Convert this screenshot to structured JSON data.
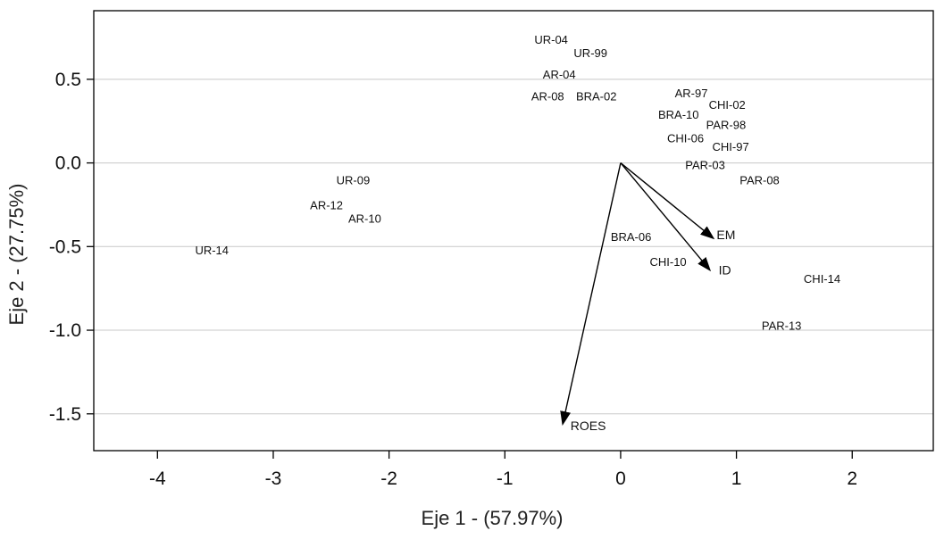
{
  "chart_data": {
    "type": "scatter",
    "title": "",
    "xlabel": "Eje 1 - (57.97%)",
    "ylabel": "Eje 2 - (27.75%)",
    "xlim": [
      -4.55,
      2.7
    ],
    "ylim": [
      -1.72,
      0.91
    ],
    "xticks": [
      -4,
      -3,
      -2,
      -1,
      0,
      1,
      2
    ],
    "xtick_labels": [
      "-4",
      "-3",
      "-2",
      "-1",
      "0",
      "1",
      "2"
    ],
    "yticks": [
      0.5,
      0.0,
      -0.5,
      -1.0,
      -1.5
    ],
    "ytick_labels": [
      "0.5",
      "0.0",
      "-0.5",
      "-1.0",
      "-1.5"
    ],
    "grid": "horizontal",
    "points": [
      {
        "label": "UR-04",
        "x": -0.6,
        "y": 0.74
      },
      {
        "label": "UR-99",
        "x": -0.26,
        "y": 0.66
      },
      {
        "label": "AR-04",
        "x": -0.53,
        "y": 0.53
      },
      {
        "label": "AR-08",
        "x": -0.63,
        "y": 0.4
      },
      {
        "label": "BRA-02",
        "x": -0.21,
        "y": 0.4
      },
      {
        "label": "AR-97",
        "x": 0.61,
        "y": 0.42
      },
      {
        "label": "CHI-02",
        "x": 0.92,
        "y": 0.35
      },
      {
        "label": "BRA-10",
        "x": 0.5,
        "y": 0.29
      },
      {
        "label": "PAR-98",
        "x": 0.91,
        "y": 0.23
      },
      {
        "label": "CHI-06",
        "x": 0.56,
        "y": 0.15
      },
      {
        "label": "CHI-97",
        "x": 0.95,
        "y": 0.1
      },
      {
        "label": "PAR-03",
        "x": 0.73,
        "y": -0.01
      },
      {
        "label": "PAR-08",
        "x": 1.2,
        "y": -0.1
      },
      {
        "label": "UR-09",
        "x": -2.31,
        "y": -0.1
      },
      {
        "label": "AR-12",
        "x": -2.54,
        "y": -0.25
      },
      {
        "label": "AR-10",
        "x": -2.21,
        "y": -0.33
      },
      {
        "label": "UR-14",
        "x": -3.53,
        "y": -0.52
      },
      {
        "label": "BRA-06",
        "x": 0.09,
        "y": -0.44
      },
      {
        "label": "CHI-10",
        "x": 0.41,
        "y": -0.59
      },
      {
        "label": "CHI-14",
        "x": 1.74,
        "y": -0.69
      },
      {
        "label": "PAR-13",
        "x": 1.39,
        "y": -0.97
      }
    ],
    "vectors": [
      {
        "label": "EM",
        "x": 0.8,
        "y": -0.45,
        "label_x": 0.91,
        "label_y": -0.43
      },
      {
        "label": "ID",
        "x": 0.77,
        "y": -0.64,
        "label_x": 0.9,
        "label_y": -0.64
      },
      {
        "label": "ROES",
        "x": -0.5,
        "y": -1.56,
        "label_x": -0.28,
        "label_y": -1.57
      }
    ]
  }
}
